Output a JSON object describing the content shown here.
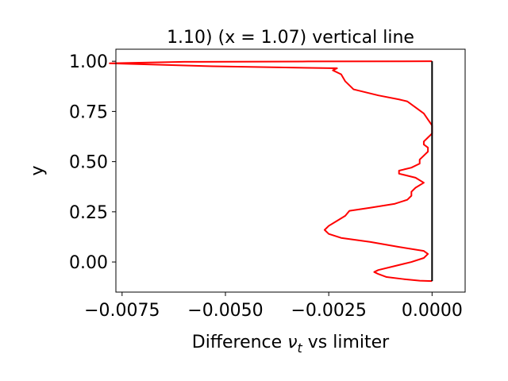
{
  "chart_data": {
    "type": "line",
    "title": "1.10) (x = 1.07) vertical line",
    "xlabel_prefix": "Difference ",
    "xlabel_symbol": "ν",
    "xlabel_subscript": "t",
    "xlabel_suffix": " vs limiter",
    "ylabel": "y",
    "xlim": [
      -0.00765,
      0.0008
    ],
    "ylim": [
      -0.15,
      1.06
    ],
    "xticks": [
      -0.0075,
      -0.005,
      -0.0025,
      0.0
    ],
    "xtick_labels": [
      "−0.0075",
      "−0.0050",
      "−0.0025",
      "0.0000"
    ],
    "yticks": [
      0.0,
      0.25,
      0.5,
      0.75,
      1.0
    ],
    "ytick_labels": [
      "0.00",
      "0.25",
      "0.50",
      "0.75",
      "1.00"
    ],
    "grid": false,
    "series": [
      {
        "color": "#ff0000",
        "points": [
          [
            0.0,
            -0.095
          ],
          [
            -0.0003,
            -0.093
          ],
          [
            -0.0007,
            -0.085
          ],
          [
            -0.0011,
            -0.075
          ],
          [
            -0.0013,
            -0.06
          ],
          [
            -0.0014,
            -0.05
          ],
          [
            -0.0013,
            -0.04
          ],
          [
            -0.0009,
            -0.02
          ],
          [
            -0.0005,
            0.0
          ],
          [
            -0.0002,
            0.02
          ],
          [
            -0.0001,
            0.04
          ],
          [
            -0.0002,
            0.055
          ],
          [
            -0.0008,
            0.075
          ],
          [
            -0.0015,
            0.1
          ],
          [
            -0.0022,
            0.12
          ],
          [
            -0.0025,
            0.14
          ],
          [
            -0.0026,
            0.16
          ],
          [
            -0.0025,
            0.18
          ],
          [
            -0.0023,
            0.205
          ],
          [
            -0.0021,
            0.23
          ],
          [
            -0.002,
            0.255
          ],
          [
            -0.0015,
            0.27
          ],
          [
            -0.0009,
            0.29
          ],
          [
            -0.0006,
            0.31
          ],
          [
            -0.0005,
            0.33
          ],
          [
            -0.0005,
            0.35
          ],
          [
            -0.0004,
            0.37
          ],
          [
            -0.0002,
            0.395
          ],
          [
            -0.0004,
            0.42
          ],
          [
            -0.0008,
            0.44
          ],
          [
            -0.0008,
            0.455
          ],
          [
            -0.0005,
            0.47
          ],
          [
            -0.0003,
            0.49
          ],
          [
            -0.0003,
            0.51
          ],
          [
            -0.0002,
            0.53
          ],
          [
            -0.0001,
            0.55
          ],
          [
            -0.0001,
            0.57
          ],
          [
            -0.0002,
            0.585
          ],
          [
            -0.0002,
            0.6
          ],
          [
            -0.0001,
            0.62
          ],
          [
            0.0,
            0.64
          ],
          [
            0.0,
            0.68
          ],
          [
            -0.0001,
            0.71
          ],
          [
            -0.0002,
            0.74
          ],
          [
            -0.0004,
            0.77
          ],
          [
            -0.0006,
            0.8
          ],
          [
            -0.0008,
            0.81
          ],
          [
            -0.0013,
            0.83
          ],
          [
            -0.0019,
            0.86
          ],
          [
            -0.0021,
            0.9
          ],
          [
            -0.0022,
            0.935
          ],
          [
            -0.0024,
            0.955
          ],
          [
            -0.0023,
            0.965
          ],
          [
            -0.0053,
            0.975
          ],
          [
            -0.0078,
            0.99
          ],
          [
            -0.006,
            0.997
          ],
          [
            -0.003,
            0.999
          ],
          [
            0.0,
            1.0
          ]
        ]
      },
      {
        "color": "#000000",
        "points": [
          [
            0.0,
            -0.095
          ],
          [
            0.0,
            1.0
          ]
        ]
      }
    ]
  }
}
